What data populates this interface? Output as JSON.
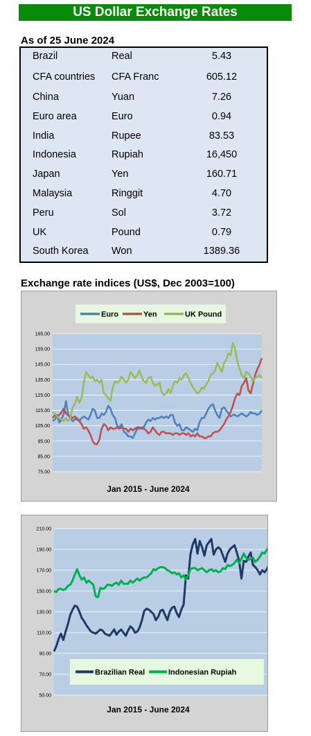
{
  "header": {
    "title": "US Dollar Exchange Rates"
  },
  "rates": {
    "as_of": "As of 25 June 2024",
    "rows": [
      {
        "country": "Brazil",
        "currency": "Real",
        "value": "5.43"
      },
      {
        "country": "CFA countries",
        "currency": "CFA Franc",
        "value": "605.12"
      },
      {
        "country": "China",
        "currency": "Yuan",
        "value": "7.26"
      },
      {
        "country": "Euro area",
        "currency": "Euro",
        "value": "0.94"
      },
      {
        "country": "India",
        "currency": "Rupee",
        "value": "83.53"
      },
      {
        "country": "Indonesia",
        "currency": "Rupiah",
        "value": "16,450"
      },
      {
        "country": "Japan",
        "currency": "Yen",
        "value": "160.71"
      },
      {
        "country": "Malaysia",
        "currency": "Ringgit",
        "value": "4.70"
      },
      {
        "country": "Peru",
        "currency": "Sol",
        "value": "3.72"
      },
      {
        "country": "UK",
        "currency": "Pound",
        "value": "0.79"
      },
      {
        "country": "South Korea",
        "currency": "Won",
        "value": "1389.36"
      }
    ]
  },
  "indices_title": "Exchange rate indices (US$, Dec 2003=100)",
  "chart_data": [
    {
      "type": "line",
      "title": "",
      "xlabel": "Jan 2015 - June 2024",
      "ylabel": "",
      "ylim": [
        75,
        165
      ],
      "yticks": [
        "75.00",
        "85.00",
        "95.00",
        "105.00",
        "115.00",
        "125.00",
        "135.00",
        "145.00",
        "155.00",
        "165.00"
      ],
      "grid": true,
      "legend": "top-center",
      "series": [
        {
          "name": "Euro",
          "color": "#4f81bd",
          "values": [
            108,
            109,
            112,
            107,
            109,
            113,
            121,
            112,
            110,
            108,
            109,
            110,
            108,
            110,
            111,
            110,
            109,
            112,
            116,
            115,
            110,
            110,
            113,
            112,
            114,
            118,
            116,
            112,
            110,
            105,
            104,
            106,
            101,
            100,
            98,
            98,
            97,
            100,
            103,
            103,
            104,
            104,
            107,
            109,
            108,
            110,
            109,
            110,
            110,
            111,
            110,
            111,
            110,
            112,
            112,
            107,
            105,
            106,
            102,
            102,
            104,
            103,
            102,
            101,
            103,
            102,
            107,
            110,
            110,
            113,
            116,
            118,
            119,
            115,
            112,
            110,
            116,
            117,
            115,
            113,
            111,
            112,
            112,
            111,
            112,
            113,
            112,
            111,
            112,
            114,
            113,
            113,
            112,
            113,
            115
          ]
        },
        {
          "name": "Yen",
          "color": "#c0504d",
          "values": [
            110,
            112,
            111,
            112,
            114,
            116,
            113,
            112,
            111,
            110,
            111,
            109,
            108,
            106,
            103,
            104,
            102,
            99,
            95,
            93,
            93,
            96,
            103,
            106,
            105,
            102,
            104,
            103,
            103,
            104,
            103,
            104,
            103,
            103,
            101,
            103,
            102,
            103,
            104,
            104,
            103,
            103,
            102,
            100,
            101,
            104,
            102,
            100,
            99,
            101,
            101,
            100,
            100,
            100,
            99,
            100,
            100,
            99,
            100,
            100,
            99,
            100,
            98,
            99,
            98,
            100,
            98,
            98,
            97,
            97,
            98,
            98,
            100,
            101,
            101,
            102,
            104,
            106,
            109,
            111,
            114,
            118,
            123,
            126,
            125,
            131,
            133,
            136,
            128,
            126,
            132,
            138,
            142,
            145,
            149
          ]
        },
        {
          "name": "UK Pound",
          "color": "#9bbb59",
          "values": [
            114,
            113,
            111,
            110,
            109,
            108,
            110,
            108,
            110,
            117,
            119,
            124,
            120,
            123,
            133,
            140,
            138,
            136,
            137,
            134,
            135,
            133,
            135,
            126,
            125,
            123,
            121,
            130,
            134,
            133,
            134,
            137,
            135,
            133,
            135,
            140,
            138,
            136,
            138,
            141,
            137,
            134,
            133,
            136,
            137,
            133,
            131,
            132,
            133,
            127,
            125,
            126,
            129,
            126,
            131,
            134,
            133,
            136,
            135,
            138,
            139,
            136,
            133,
            130,
            128,
            126,
            127,
            130,
            129,
            132,
            134,
            138,
            139,
            141,
            146,
            143,
            140,
            146,
            148,
            152,
            151,
            159,
            155,
            147,
            142,
            138,
            136,
            140,
            139,
            137,
            134,
            136,
            137,
            138,
            136
          ]
        }
      ]
    },
    {
      "type": "line",
      "title": "",
      "xlabel": "Jan 2015 - June 2024",
      "ylabel": "",
      "ylim": [
        50,
        210
      ],
      "yticks": [
        "50.00",
        "70.00",
        "90.00",
        "110.00",
        "130.00",
        "150.00",
        "170.00",
        "190.00",
        "210.00"
      ],
      "grid": true,
      "legend": "bottom-center",
      "series": [
        {
          "name": "Brazilian Real",
          "color": "#1f3864",
          "values": [
            92,
            97,
            104,
            109,
            103,
            111,
            118,
            127,
            132,
            136,
            135,
            130,
            124,
            121,
            117,
            114,
            111,
            110,
            109,
            111,
            113,
            112,
            109,
            108,
            107,
            110,
            113,
            108,
            111,
            113,
            110,
            107,
            112,
            116,
            114,
            110,
            111,
            115,
            122,
            131,
            133,
            132,
            130,
            128,
            122,
            125,
            131,
            132,
            127,
            122,
            130,
            134,
            135,
            129,
            125,
            132,
            137,
            165,
            162,
            186,
            195,
            200,
            186,
            198,
            192,
            184,
            194,
            197,
            200,
            185,
            190,
            192,
            190,
            184,
            178,
            186,
            190,
            192,
            194,
            187,
            179,
            162,
            179,
            178,
            183,
            187,
            175,
            173,
            170,
            166,
            170,
            168,
            171,
            176,
            185
          ]
        },
        {
          "name": "Indonesian Rupiah",
          "color": "#00b050",
          "values": [
            150,
            149,
            152,
            152,
            151,
            152,
            155,
            156,
            160,
            166,
            171,
            165,
            161,
            163,
            158,
            160,
            158,
            156,
            145,
            144,
            153,
            152,
            153,
            156,
            156,
            155,
            157,
            158,
            156,
            160,
            157,
            157,
            157,
            160,
            158,
            160,
            162,
            160,
            162,
            163,
            163,
            165,
            167,
            171,
            170,
            172,
            173,
            173,
            172,
            170,
            169,
            167,
            168,
            166,
            167,
            163,
            165,
            161,
            165,
            171,
            172,
            172,
            170,
            171,
            172,
            170,
            168,
            170,
            171,
            169,
            170,
            168,
            169,
            172,
            171,
            175,
            174,
            175,
            177,
            180,
            177,
            181,
            186,
            182,
            180,
            181,
            182,
            178,
            180,
            183,
            187,
            186,
            190,
            192,
            195
          ]
        }
      ]
    }
  ]
}
